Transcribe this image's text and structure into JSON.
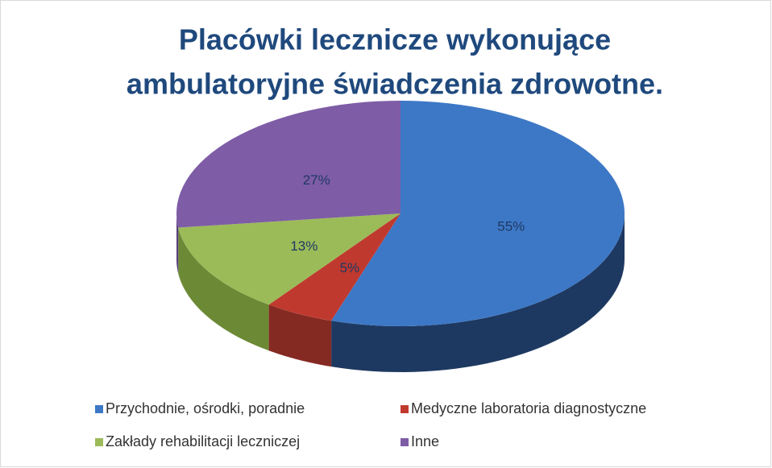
{
  "chart_data": {
    "type": "pie",
    "title": [
      "Placówki lecznicze wykonujące",
      "ambulatoryjne świadczenia zdrowotne."
    ],
    "categories": [
      "Przychodnie, ośrodki, poradnie",
      "Medyczne laboratoria diagnostyczne",
      "Zakłady rehabilitacji leczniczej",
      "Inne"
    ],
    "values": [
      55,
      5,
      13,
      27
    ],
    "value_labels": [
      "55%",
      "5%",
      "13%",
      "27%"
    ],
    "colors": [
      "#3d78c6",
      "#c0392f",
      "#9bbb59",
      "#7e5ca6"
    ],
    "side_colors": [
      "#1e3961",
      "#852a23",
      "#6c8a35",
      "#5a3f7c"
    ],
    "legend": "bottom"
  }
}
